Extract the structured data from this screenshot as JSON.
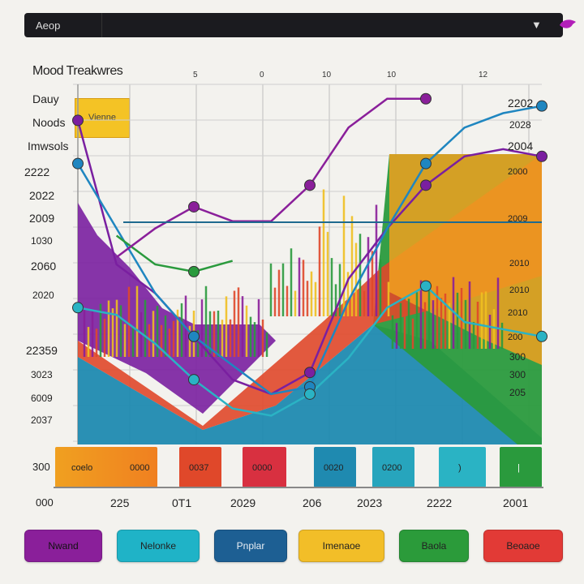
{
  "topbar": {
    "title": "Aeop"
  },
  "chart_title": "Mood Treakwres",
  "side_labels": [
    "Dauy",
    "Noods",
    "Imwsols"
  ],
  "legend_box_label": "Vienne",
  "top_labels": [
    "5",
    "0",
    "10",
    "10",
    "12"
  ],
  "y_labels_left": [
    "2222",
    "2022",
    "2009",
    "1030",
    "2060",
    "2020",
    "22359",
    "3023",
    "6009",
    "2037"
  ],
  "right_labels": [
    "2202",
    "2028",
    "2004",
    "2000",
    "2009",
    "2010",
    "2010",
    "2010",
    "200",
    "300",
    "300",
    "205"
  ],
  "bottom_row_left": [
    "300",
    "000"
  ],
  "category_bars": [
    {
      "label": "coelo",
      "label2": "0000",
      "color": "#f0a020"
    },
    {
      "label": "0037",
      "color": "#e0482a"
    },
    {
      "label": "0000",
      "color": "#d83040"
    },
    {
      "label": "0020",
      "color": "#1f8ab0"
    },
    {
      "label": "0200",
      "color": "#27a5bd"
    },
    {
      "label": ")",
      "color": "#2ab3c4"
    },
    {
      "label": "|",
      "color": "#2a9a3d"
    }
  ],
  "x_labels": [
    "225",
    "0T1",
    "2029",
    "206",
    "2023",
    "2222",
    "2001"
  ],
  "legend_buttons": [
    {
      "label": "Nwand",
      "color": "#8a1f9a"
    },
    {
      "label": "Nelonke",
      "color": "#1fb3c7"
    },
    {
      "label": "Pnplar",
      "color": "#1d5f93"
    },
    {
      "label": "Imenaoe",
      "color": "#f2be28"
    },
    {
      "label": "Baola",
      "color": "#2b9b3a"
    },
    {
      "label": "Beoaoe",
      "color": "#e23a36"
    }
  ],
  "chart_data": {
    "type": "line",
    "title": "Mood Treakwres",
    "xlabel": "",
    "ylabel": "",
    "x": [
      0,
      1,
      2,
      3,
      4,
      5,
      6,
      7,
      8,
      9,
      10,
      11,
      12
    ],
    "ylim": [
      0,
      100
    ],
    "grid": true,
    "series": [
      {
        "color": "#7a1fa0",
        "values": [
          90,
          50,
          42,
          30,
          18,
          14,
          20,
          46,
          60,
          72,
          80,
          82,
          80
        ]
      },
      {
        "color": "#1f86c0",
        "values": [
          78,
          60,
          42,
          30,
          22,
          14,
          16,
          40,
          60,
          78,
          88,
          92,
          94
        ]
      },
      {
        "color": "#2a9a3d",
        "values": [
          null,
          58,
          50,
          48,
          51,
          null,
          null,
          null,
          null,
          null,
          null,
          null,
          null
        ]
      },
      {
        "color": "#2ab3c4",
        "values": [
          38,
          36,
          28,
          18,
          10,
          8,
          14,
          24,
          38,
          44,
          34,
          32,
          30
        ]
      },
      {
        "color": "#8a1f9a",
        "values": [
          null,
          52,
          60,
          66,
          62,
          62,
          72,
          88,
          96,
          96,
          null,
          null,
          null
        ]
      }
    ],
    "areas": [
      {
        "color": "#1f8ab0"
      },
      {
        "color": "#2a9a3d"
      },
      {
        "color": "#e0482a"
      },
      {
        "color": "#f0a020"
      },
      {
        "color": "#7a1fa0"
      }
    ]
  }
}
